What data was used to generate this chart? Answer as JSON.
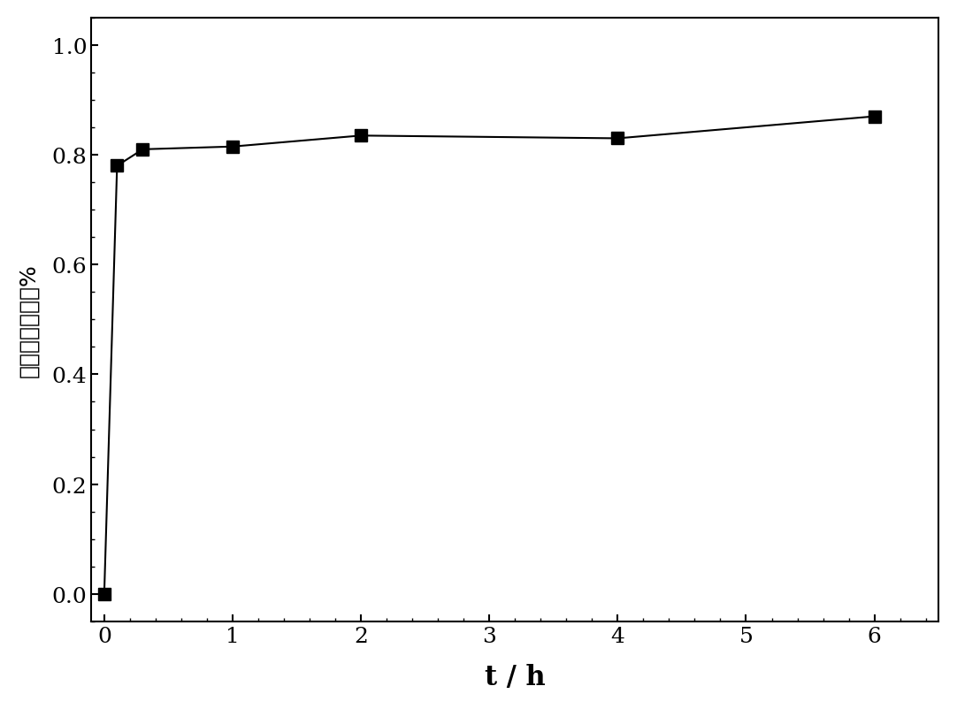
{
  "x": [
    0,
    0.1,
    0.3,
    1.0,
    2.0,
    4.0,
    6.0
  ],
  "y": [
    0.0,
    0.78,
    0.81,
    0.815,
    0.835,
    0.83,
    0.87
  ],
  "line_color": "#000000",
  "marker_color": "#000000",
  "marker_style": "s",
  "marker_size": 10,
  "line_width": 1.5,
  "xlabel": "t / h",
  "ylabel": "累积释放百分率%",
  "xlim": [
    -0.1,
    6.5
  ],
  "ylim": [
    -0.05,
    1.05
  ],
  "xticks": [
    0,
    1,
    2,
    3,
    4,
    5,
    6
  ],
  "yticks": [
    0.0,
    0.2,
    0.4,
    0.6,
    0.8,
    1.0
  ],
  "background_color": "#ffffff",
  "xlabel_fontsize": 22,
  "ylabel_fontsize": 18,
  "tick_fontsize": 18
}
